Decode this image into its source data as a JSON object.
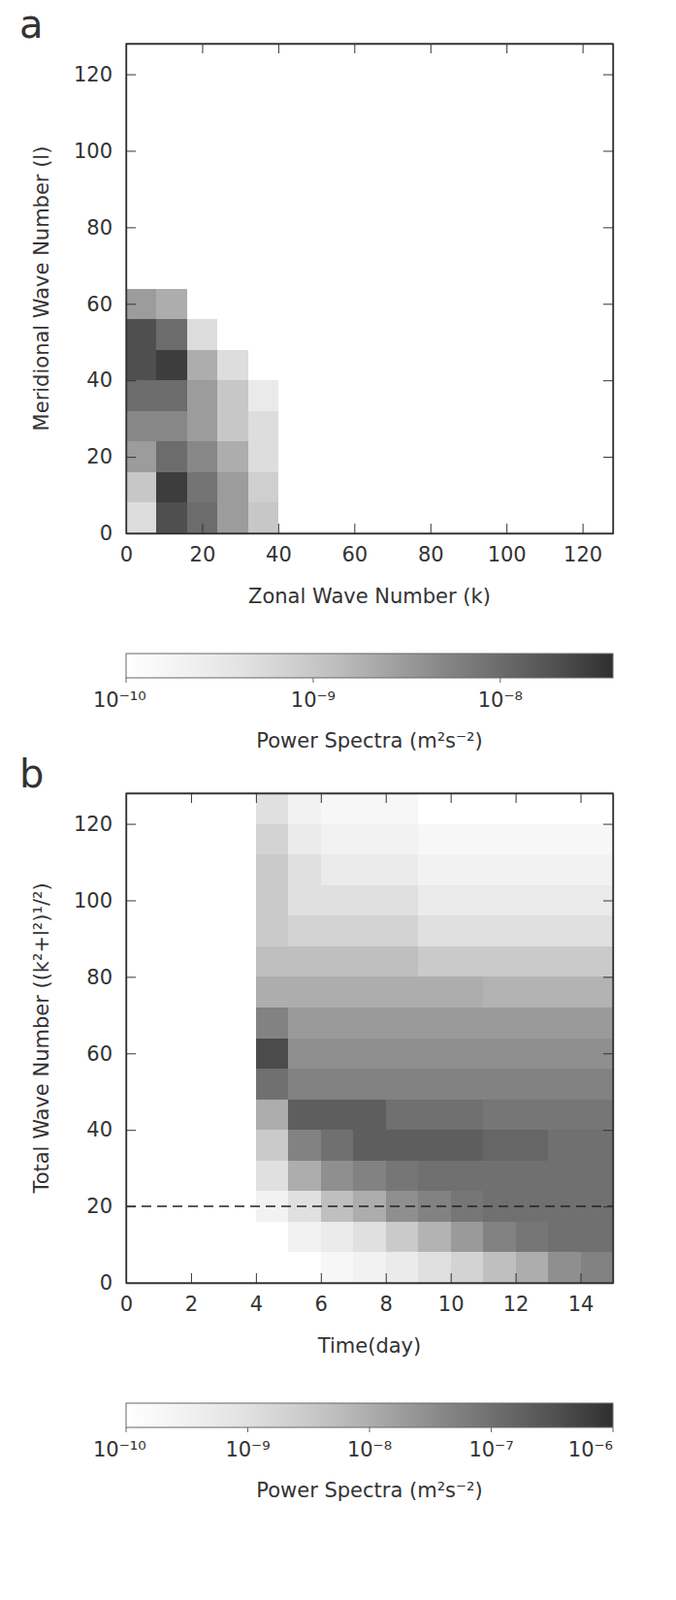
{
  "chart_data": [
    {
      "type": "heatmap",
      "panel_label": "a",
      "x_label": "Zonal Wave Number (k)",
      "y_label": "Meridional Wave Number (l)",
      "xlim": [
        0,
        128
      ],
      "ylim": [
        0,
        128
      ],
      "xticks": [
        0,
        20,
        40,
        60,
        80,
        100,
        120
      ],
      "yticks": [
        0,
        20,
        40,
        60,
        80,
        100,
        120
      ],
      "cells": {
        "x": [
          0,
          8,
          16,
          24,
          32,
          40
        ],
        "y": [
          0,
          8,
          16,
          24,
          32,
          40,
          48,
          56,
          64
        ],
        "values": [
          [
            5e-10,
            1e-09,
            3e-09,
            5e-09,
            1e-08,
            2e-08,
            2e-08,
            3e-09
          ],
          [
            2e-08,
            3e-08,
            1e-08,
            5e-09,
            1e-08,
            3e-08,
            1e-08,
            2e-09
          ],
          [
            1e-08,
            8e-09,
            5e-09,
            3e-09,
            3e-09,
            2e-09,
            5e-10,
            1e-10
          ],
          [
            3e-09,
            3e-09,
            2e-09,
            1e-09,
            1e-09,
            5e-10,
            1e-10,
            1e-10
          ],
          [
            1e-09,
            8e-10,
            5e-10,
            5e-10,
            3e-10,
            1e-10,
            1e-10,
            1e-10
          ]
        ]
      },
      "colorbar": {
        "label": "Power Spectra (m²s⁻²)",
        "log": true,
        "range": [
          1e-10,
          4e-08
        ],
        "ticks": [
          {
            "value": 1e-10,
            "label": "10⁻¹⁰"
          },
          {
            "value": 1e-09,
            "label": "10⁻⁹"
          },
          {
            "value": 1e-08,
            "label": "10⁻⁸"
          }
        ]
      }
    },
    {
      "type": "heatmap",
      "panel_label": "b",
      "x_label": "Time(day)",
      "y_label": "Total Wave Number ((k²+l²)¹/²)",
      "xlim": [
        0,
        15
      ],
      "ylim": [
        0,
        128
      ],
      "xticks": [
        0,
        2,
        4,
        6,
        8,
        10,
        12,
        14
      ],
      "yticks": [
        0,
        20,
        40,
        60,
        80,
        100,
        120
      ],
      "cells": {
        "x": [
          4,
          5,
          6,
          7,
          8,
          9,
          10,
          11,
          12,
          13,
          14,
          15
        ],
        "y": [
          0,
          8,
          16,
          24,
          32,
          40,
          48,
          56,
          64,
          72,
          80,
          88,
          96,
          104,
          112,
          120,
          128
        ],
        "values": [
          [
            1e-10,
            1e-10,
            3e-10,
            1e-09,
            3e-09,
            1e-08,
            1e-07,
            4e-07,
            5e-08,
            1e-08,
            5e-09,
            3e-09,
            3e-09,
            3e-09,
            2e-09,
            1e-09
          ],
          [
            1e-10,
            3e-10,
            1e-09,
            1e-08,
            5e-08,
            2e-07,
            5e-08,
            3e-08,
            2e-08,
            1e-08,
            5e-09,
            2e-09,
            1e-09,
            1e-09,
            5e-10,
            3e-10
          ],
          [
            2e-10,
            5e-10,
            5e-09,
            3e-08,
            1e-07,
            2e-07,
            5e-08,
            3e-08,
            2e-08,
            1e-08,
            5e-09,
            2e-09,
            1e-09,
            5e-10,
            3e-10,
            2e-10
          ],
          [
            3e-10,
            1e-09,
            1e-08,
            5e-08,
            2e-07,
            2e-07,
            5e-08,
            3e-08,
            2e-08,
            1e-08,
            5e-09,
            2e-09,
            1e-09,
            5e-10,
            3e-10,
            2e-10
          ],
          [
            5e-10,
            3e-09,
            3e-08,
            8e-08,
            2e-07,
            1e-07,
            5e-08,
            3e-08,
            2e-08,
            1e-08,
            5e-09,
            2e-09,
            1e-09,
            5e-10,
            3e-10,
            2e-10
          ],
          [
            1e-09,
            8e-09,
            5e-08,
            1e-07,
            2e-07,
            1e-07,
            5e-08,
            3e-08,
            2e-08,
            1e-08,
            3e-09,
            1e-09,
            5e-10,
            3e-10,
            2e-10,
            1e-10
          ],
          [
            2e-09,
            2e-08,
            8e-08,
            1e-07,
            2e-07,
            1e-07,
            5e-08,
            3e-08,
            2e-08,
            1e-08,
            3e-09,
            1e-09,
            5e-10,
            3e-10,
            2e-10,
            1e-10
          ],
          [
            5e-09,
            5e-08,
            1e-07,
            1e-07,
            1.5e-07,
            8e-08,
            5e-08,
            3e-08,
            2e-08,
            8e-09,
            3e-09,
            1e-09,
            5e-10,
            3e-10,
            2e-10,
            1e-10
          ],
          [
            1e-08,
            8e-08,
            1e-07,
            1e-07,
            1.5e-07,
            8e-08,
            5e-08,
            3e-08,
            2e-08,
            8e-09,
            3e-09,
            1e-09,
            5e-10,
            3e-10,
            2e-10,
            1e-10
          ],
          [
            3e-08,
            1e-07,
            1e-07,
            1e-07,
            1e-07,
            8e-08,
            5e-08,
            3e-08,
            2e-08,
            8e-09,
            3e-09,
            1e-09,
            5e-10,
            3e-10,
            2e-10,
            1e-10
          ],
          [
            5e-08,
            1e-07,
            1e-07,
            1e-07,
            1e-07,
            8e-08,
            5e-08,
            3e-08,
            2e-08,
            8e-09,
            3e-09,
            1e-09,
            5e-10,
            3e-10,
            2e-10,
            1e-10
          ]
        ]
      },
      "reference_lines": [
        {
          "y": 20,
          "line_style": "dashed"
        }
      ],
      "colorbar": {
        "label": "Power Spectra (m²s⁻²)",
        "log": true,
        "range": [
          1e-10,
          1e-06
        ],
        "ticks": [
          {
            "value": 1e-10,
            "label": "10⁻¹⁰"
          },
          {
            "value": 1e-09,
            "label": "10⁻⁹"
          },
          {
            "value": 1e-08,
            "label": "10⁻⁸"
          },
          {
            "value": 1e-07,
            "label": "10⁻⁷"
          },
          {
            "value": 1e-06,
            "label": "10⁻⁶"
          }
        ]
      }
    }
  ]
}
